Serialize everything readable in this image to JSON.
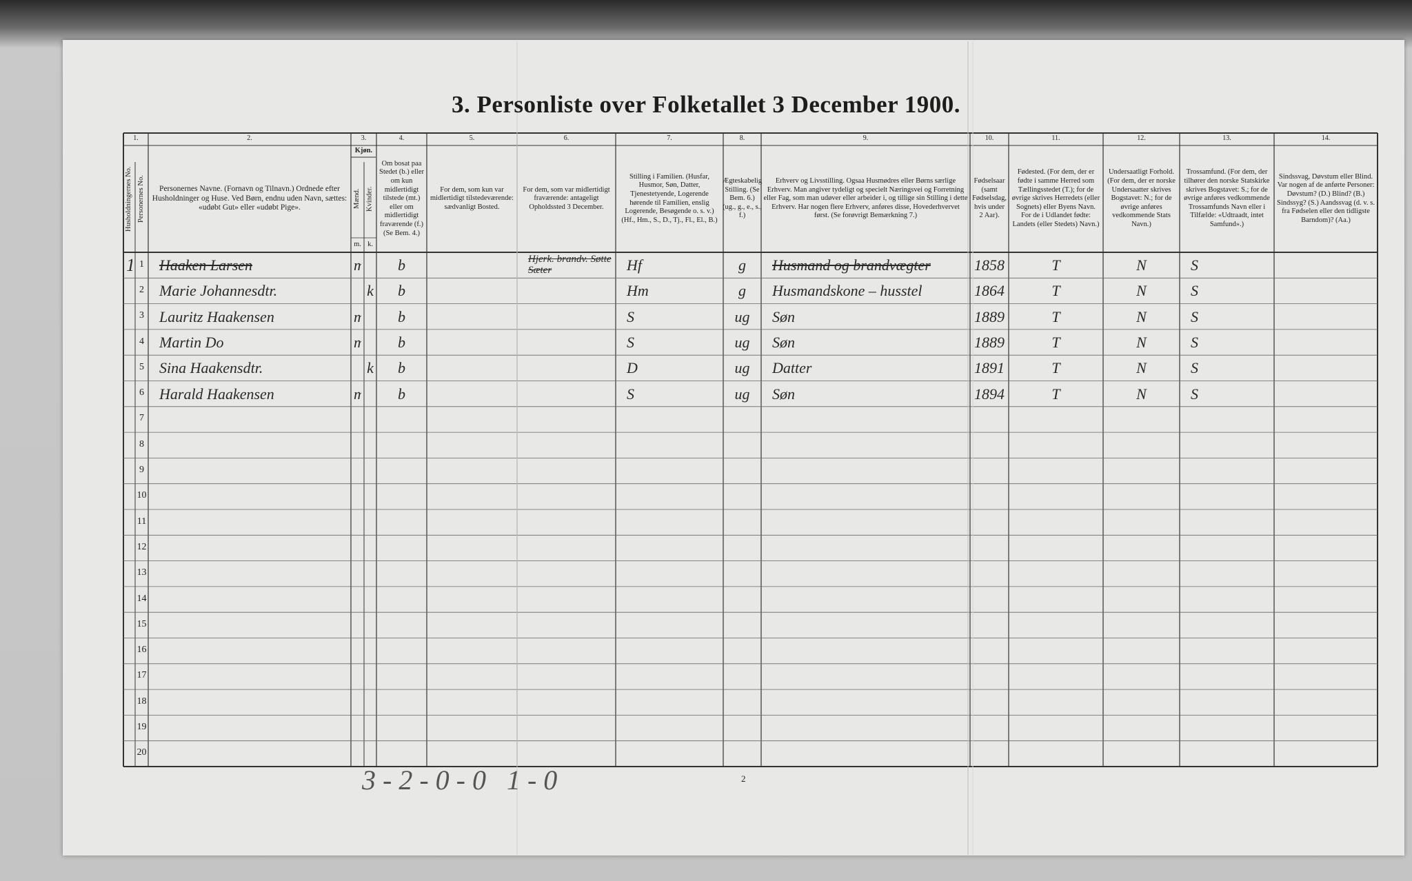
{
  "header": {
    "title": "3. Personliste over Folketallet 3 December 1900."
  },
  "columns": [
    {
      "number": "1.",
      "subheaders": [
        "Husholdningernes No.",
        "Personernes No."
      ]
    },
    {
      "number": "2.",
      "header": "Personernes Navne. (Fornavn og Tilnavn.) Ordnede efter Husholdninger og Huse. Ved Børn, endnu uden Navn, sættes: «udøbt Gut» eller «udøbt Pige»."
    },
    {
      "number": "3.",
      "header": "Kjøn.",
      "subheaders": [
        "Mænd.",
        "Kvinder."
      ],
      "sublabels": [
        "m.",
        "k."
      ]
    },
    {
      "number": "4.",
      "header": "Om bosat paa Stedet (b.) eller om kun midlertidigt tilstede (mt.) eller om midlertidigt fraværende (f.) (Se Bem. 4.)"
    },
    {
      "number": "5.",
      "header": "For dem, som kun var midlertidigt tilstedeværende: sædvanligt Bosted."
    },
    {
      "number": "6.",
      "header": "For dem, som var midlertidigt fraværende: antageligt Opholdssted 3 December."
    },
    {
      "number": "7.",
      "header": "Stilling i Familien. (Husfar, Husmor, Søn, Datter, Tjenestetyende, Logerende hørende til Familien, enslig Logerende, Besøgende o. s. v.) (Hf., Hm., S., D., Tj., Fl., El., B.)"
    },
    {
      "number": "8.",
      "header": "Ægteskabelig Stilling. (Se Bem. 6.) (ug., g., e., s., f.)"
    },
    {
      "number": "9.",
      "header": "Erhverv og Livsstilling. Ogsaa Husmødres eller Børns særlige Erhverv. Man angiver tydeligt og specielt Næringsvei og Forretning eller Fag, som man udøver eller arbeider i, og tillige sin Stilling i dette Erhverv. Har nogen flere Erhverv, anføres disse, Hovederhvervet først. (Se forøvrigt Bemærkning 7.)"
    },
    {
      "number": "10.",
      "header": "Fødselsaar (samt Fødselsdag, hvis under 2 Aar)."
    },
    {
      "number": "11.",
      "header": "Fødested. (For dem, der er fødte i samme Herred som Tællingsstedet (T.); for de øvrige skrives Herredets (eller Sognets) eller Byens Navn. For de i Udlandet fødte: Landets (eller Stedets) Navn.)"
    },
    {
      "number": "12.",
      "header": "Undersaatligt Forhold. (For dem, der er norske Undersaatter skrives Bogstavet: N.; for de øvrige anføres vedkommende Stats Navn.)"
    },
    {
      "number": "13.",
      "header": "Trossamfund. (For dem, der tilhører den norske Statskirke skrives Bogstavet: S.; for de øvrige anføres vedkommende Trossamfunds Navn eller i Tilfælde: «Udtraadt, intet Samfund».)"
    },
    {
      "number": "14.",
      "header": "Sindssvag, Døvstum eller Blind. Var nogen af de anførte Personer: Døvstum? (D.) Blind? (B.) Sindssyg? (S.) Aandssvag (d. v. s. fra Fødselen eller den tidligste Barndom)? (Aa.)"
    }
  ],
  "rows": [
    {
      "household": "1",
      "number": "1",
      "name": "Haaken Larsen",
      "sex_m": "m",
      "residence": "b",
      "absent_location": "Hjerk. brandv. Søtte Sæter",
      "family": "Hf",
      "marital": "g",
      "occupation": "Husmand og brandvægter",
      "birth_year": "1858",
      "birthplace": "T",
      "citizenship": "N",
      "religion": "S"
    },
    {
      "number": "2",
      "name": "Marie Johannesdtr.",
      "sex_k": "k",
      "residence": "b",
      "family": "Hm",
      "marital": "g",
      "occupation": "Husmandskone – husstel",
      "birth_year": "1864",
      "birthplace": "T",
      "citizenship": "N",
      "religion": "S"
    },
    {
      "number": "3",
      "name": "Lauritz Haakensen",
      "sex_m": "m",
      "residence": "b",
      "family": "S",
      "marital": "ug",
      "occupation": "Søn",
      "birth_year": "1889",
      "birthplace": "T",
      "citizenship": "N",
      "religion": "S"
    },
    {
      "number": "4",
      "name": "Martin Do",
      "sex_m": "m",
      "residence": "b",
      "family": "S",
      "marital": "ug",
      "occupation": "Søn",
      "birth_year": "1889",
      "birthplace": "T",
      "citizenship": "N",
      "religion": "S"
    },
    {
      "number": "5",
      "name": "Sina Haakensdtr.",
      "sex_k": "k",
      "residence": "b",
      "family": "D",
      "marital": "ug",
      "occupation": "Datter",
      "birth_year": "1891",
      "birthplace": "T",
      "citizenship": "N",
      "religion": "S"
    },
    {
      "number": "6",
      "name": "Harald Haakensen",
      "sex_m": "m",
      "residence": "b",
      "family": "S",
      "marital": "ug",
      "occupation": "Søn",
      "birth_year": "1894",
      "birthplace": "T",
      "citizenship": "N",
      "religion": "S"
    },
    {
      "number": "7"
    },
    {
      "number": "8"
    },
    {
      "number": "9"
    },
    {
      "number": "10"
    },
    {
      "number": "11"
    },
    {
      "number": "12"
    },
    {
      "number": "13"
    },
    {
      "number": "14"
    },
    {
      "number": "15"
    },
    {
      "number": "16"
    },
    {
      "number": "17"
    },
    {
      "number": "18"
    },
    {
      "number": "19"
    },
    {
      "number": "20"
    }
  ],
  "footer": {
    "tally": "3-2-0-0 1-0",
    "page_number": "2"
  }
}
